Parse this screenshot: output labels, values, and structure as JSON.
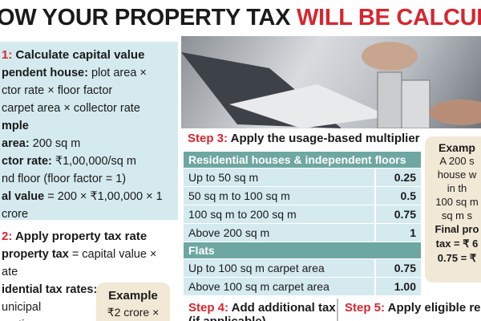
{
  "header": {
    "title_black": "OW YOUR PROPERTY TAX",
    "title_red": "WILL BE CALCULATE"
  },
  "step1": {
    "label": "1:",
    "title": "Calculate capital value",
    "lines": [
      {
        "bold": "pendent house:",
        "text": "plot area ×"
      },
      {
        "text": "ctor rate × floor factor"
      },
      {
        "text": "carpet area × collector rate"
      },
      {
        "bold": "mple"
      },
      {
        "bold": "area:",
        "text": "200 sq m"
      },
      {
        "bold": "ctor rate:",
        "text": "₹1,00,000/sq m"
      },
      {
        "text": "nd floor (floor factor = 1)"
      },
      {
        "bold": "al value",
        "text": "= 200 × ₹1,00,000 × 1"
      },
      {
        "text": "crore"
      }
    ]
  },
  "step2": {
    "label": "2:",
    "title": "Apply property tax rate",
    "lines": [
      {
        "bold": "property tax",
        "text": "= capital value ×"
      },
      {
        "text": "ate"
      },
      {
        "bold": "idential tax rates:"
      },
      {
        "text": "unicipal"
      },
      {
        "text": "orations"
      }
    ],
    "example": {
      "title": "Example",
      "text": "₹2 crore ×"
    }
  },
  "step3": {
    "label": "Step 3:",
    "title": "Apply the usage-based multiplier",
    "groups": [
      {
        "heading": "Residential houses & independent floors",
        "rows": [
          [
            "Up to 50 sq m",
            "0.25"
          ],
          [
            "50 sq m to 100 sq m",
            "0.5"
          ],
          [
            "100 sq m to 200 sq m",
            "0.75"
          ],
          [
            "Above 200 sq m",
            "1"
          ]
        ]
      },
      {
        "heading": "Flats",
        "rows": [
          [
            "Up to 100 sq m carpet area",
            "0.75"
          ],
          [
            "Above 100 sq m carpet area",
            "1.00"
          ]
        ]
      }
    ]
  },
  "example_box": {
    "title": "Examp",
    "lines": [
      "A 200 s",
      "house w",
      "in th",
      "100 sq m",
      "sq m s"
    ],
    "bold_lines": [
      "Final pro",
      "tax = ₹ 6",
      "0.75 = ₹"
    ]
  },
  "step4": {
    "label": "Step 4:",
    "title": "Add additional tax",
    "sub": "(if applicable)"
  },
  "step5": {
    "label": "Step 5:",
    "title": "Apply eligible reba"
  }
}
